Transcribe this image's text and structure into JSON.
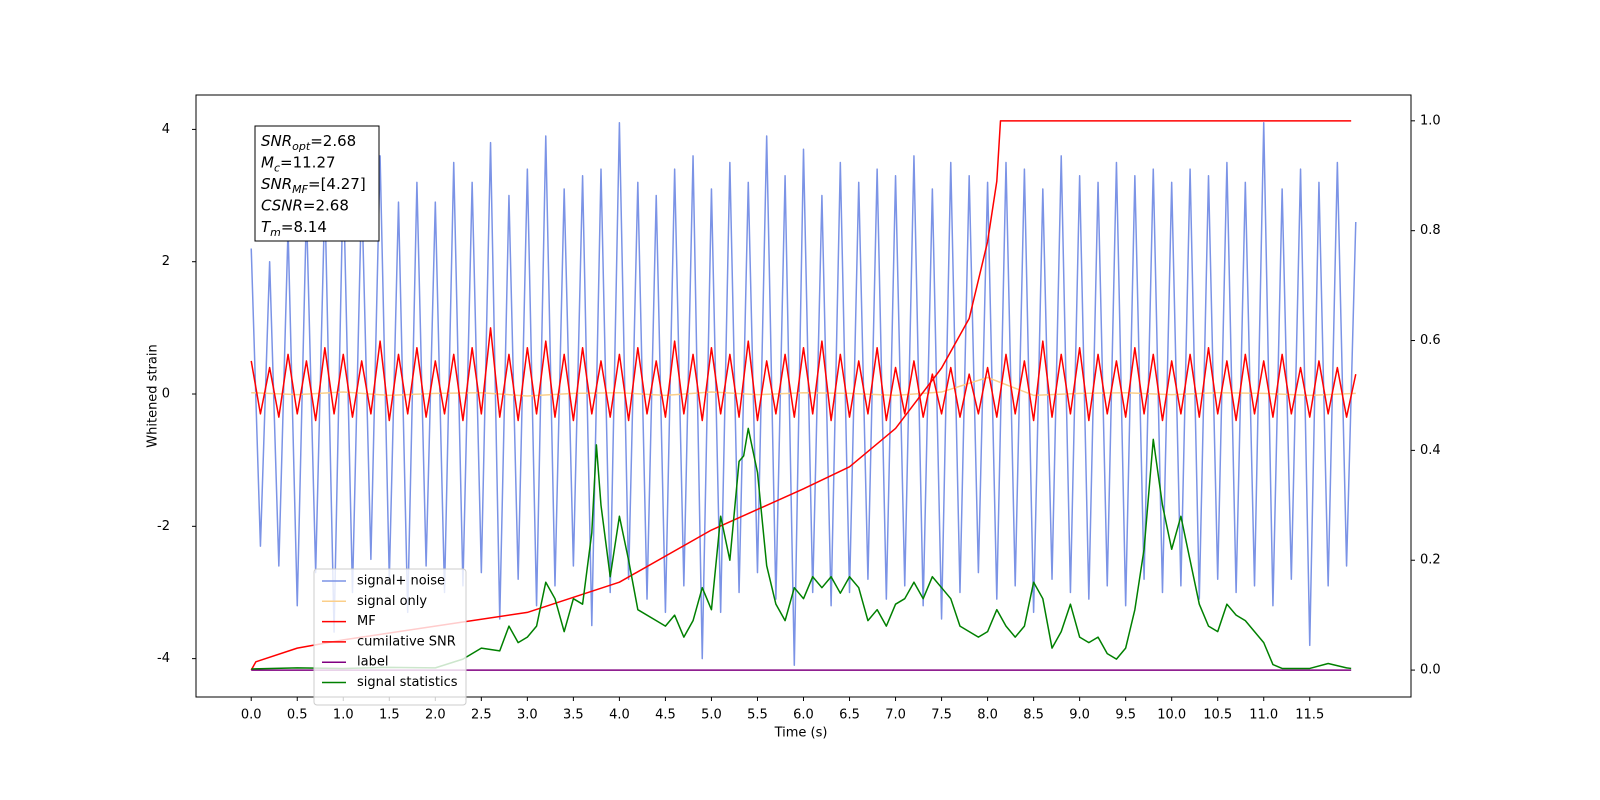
{
  "chart_data": {
    "type": "line",
    "xlabel": "Time (s)",
    "ylabel": "Whitened strain",
    "xlim": [
      -0.6,
      12.6
    ],
    "ylim": [
      -4.58,
      4.52
    ],
    "y2lim": [
      -0.049,
      1.047
    ],
    "xticks": [
      {
        "value": 0,
        "label": "0.0"
      },
      0.5,
      {
        "value": 1,
        "label": "1.0"
      },
      1.5,
      {
        "value": 2,
        "label": "2.0"
      },
      2.5,
      {
        "value": 3,
        "label": "3.0"
      },
      3.5,
      {
        "value": 4,
        "label": "4.0"
      },
      4.5,
      {
        "value": 5,
        "label": "5.0"
      },
      5.5,
      {
        "value": 6,
        "label": "6.0"
      },
      6.5,
      {
        "value": 7,
        "label": "7.0"
      },
      7.5,
      {
        "value": 8,
        "label": "8.0"
      },
      8.5,
      {
        "value": 9,
        "label": "9.0"
      },
      9.5,
      {
        "value": 10,
        "label": "10.0"
      },
      10.5,
      {
        "value": 11,
        "label": "11.0"
      },
      11.5
    ],
    "yticks": [
      -4,
      -2,
      0,
      2,
      4
    ],
    "y2ticks": [
      {
        "value": 0,
        "label": "0.0"
      },
      0.2,
      0.4,
      0.6,
      0.8,
      {
        "value": 1,
        "label": "1.0"
      }
    ],
    "legend_loc": "lower left",
    "annotation": [
      {
        "name": "SNR",
        "sub": "opt",
        "text": "=2.68"
      },
      {
        "name": "M",
        "sub": "c",
        "text": "=11.27"
      },
      {
        "name": "SNR",
        "sub": "MF",
        "text": "=[4.27]"
      },
      {
        "name": "CSNR",
        "text": "=2.68"
      },
      {
        "name": "T",
        "sub": "m",
        "text": "=8.14"
      }
    ],
    "x": [
      0,
      0.1,
      0.2,
      0.3,
      0.4,
      0.5,
      0.6,
      0.7,
      0.8,
      0.9,
      1.0,
      1.1,
      1.2,
      1.3,
      1.4,
      1.5,
      1.6,
      1.7,
      1.8,
      1.9,
      2.0,
      2.1,
      2.2,
      2.3,
      2.4,
      2.5,
      2.6,
      2.7,
      2.8,
      2.9,
      3.0,
      3.1,
      3.2,
      3.3,
      3.4,
      3.5,
      3.6,
      3.7,
      3.8,
      3.9,
      4.0,
      4.1,
      4.2,
      4.3,
      4.4,
      4.5,
      4.6,
      4.7,
      4.8,
      4.9,
      5.0,
      5.1,
      5.2,
      5.3,
      5.4,
      5.5,
      5.6,
      5.7,
      5.8,
      5.9,
      6.0,
      6.1,
      6.2,
      6.3,
      6.4,
      6.5,
      6.6,
      6.7,
      6.8,
      6.9,
      7.0,
      7.1,
      7.2,
      7.3,
      7.4,
      7.5,
      7.6,
      7.7,
      7.8,
      7.9,
      8.0,
      8.1,
      8.2,
      8.3,
      8.4,
      8.5,
      8.6,
      8.7,
      8.8,
      8.9,
      9.0,
      9.1,
      9.2,
      9.3,
      9.4,
      9.5,
      9.6,
      9.7,
      9.8,
      9.9,
      10.0,
      10.1,
      10.2,
      10.3,
      10.4,
      10.5,
      10.6,
      10.7,
      10.8,
      10.9,
      11.0,
      11.1,
      11.2,
      11.3,
      11.4,
      11.5,
      11.6,
      11.7,
      11.8,
      11.9,
      12.0
    ],
    "series": [
      {
        "name": "signal+ noise",
        "color": "#7b93e6",
        "values": [
          2.2,
          -2.3,
          2.0,
          -2.6,
          2.5,
          -3.2,
          2.8,
          -2.7,
          3.0,
          -3.6,
          3.3,
          -3.0,
          3.1,
          -2.5,
          3.6,
          -2.8,
          2.9,
          -3.3,
          3.2,
          -2.6,
          2.9,
          -3.0,
          3.5,
          -2.9,
          3.2,
          -2.7,
          3.8,
          -3.4,
          3.0,
          -2.8,
          3.4,
          -3.2,
          3.9,
          -2.9,
          3.1,
          -2.6,
          3.3,
          -3.5,
          3.4,
          -3.0,
          4.1,
          -2.8,
          3.2,
          -3.1,
          3.0,
          -3.3,
          3.4,
          -2.9,
          3.6,
          -4.0,
          3.1,
          -3.3,
          3.5,
          -3.0,
          3.2,
          -2.7,
          3.9,
          -3.1,
          3.3,
          -4.1,
          3.7,
          -3.0,
          3.0,
          -3.2,
          3.5,
          -3.0,
          3.2,
          -2.8,
          3.4,
          -3.1,
          3.3,
          -2.9,
          3.6,
          -3.2,
          3.1,
          -3.4,
          3.5,
          -3.0,
          3.3,
          -2.7,
          3.2,
          -3.1,
          3.5,
          -2.9,
          3.4,
          -3.3,
          3.1,
          -2.8,
          3.6,
          -3.0,
          3.3,
          -3.1,
          3.2,
          -2.9,
          3.5,
          -3.2,
          3.3,
          -2.8,
          3.4,
          -3.0,
          3.2,
          -2.9,
          3.4,
          -3.1,
          3.3,
          -2.8,
          3.5,
          -3.0,
          3.2,
          -2.9,
          4.1,
          -3.2,
          3.1,
          -2.8,
          3.4,
          -3.8,
          3.2,
          -2.9,
          3.5,
          -2.6,
          2.6
        ]
      },
      {
        "name": "signal only",
        "color": "#fbcf8a",
        "x": [
          0,
          0.5,
          1.0,
          1.5,
          2.0,
          2.5,
          3.0,
          3.5,
          4.0,
          4.5,
          5.0,
          5.5,
          6.0,
          6.5,
          7.0,
          7.5,
          8.0,
          8.5,
          9.0,
          9.5,
          10.0,
          10.5,
          11.0,
          11.5,
          12.0
        ],
        "values": [
          0.02,
          -0.01,
          0.03,
          -0.02,
          0.01,
          0.02,
          -0.03,
          0.01,
          0.02,
          -0.02,
          0.03,
          -0.01,
          0.02,
          0.01,
          -0.02,
          0.03,
          0.25,
          -0.02,
          0.01,
          0.02,
          -0.01,
          0.02,
          0.01,
          -0.02,
          0.01
        ]
      },
      {
        "name": "MF",
        "color": "#ff0000",
        "values": [
          0.5,
          -0.3,
          0.4,
          -0.35,
          0.6,
          -0.3,
          0.5,
          -0.4,
          0.7,
          -0.3,
          0.6,
          -0.35,
          0.5,
          -0.3,
          0.8,
          -0.4,
          0.6,
          -0.3,
          0.7,
          -0.35,
          0.5,
          -0.3,
          0.6,
          -0.4,
          0.7,
          -0.3,
          1.0,
          -0.35,
          0.6,
          -0.4,
          0.7,
          -0.3,
          0.8,
          -0.35,
          0.6,
          -0.4,
          0.7,
          -0.3,
          0.5,
          -0.35,
          0.6,
          -0.4,
          0.7,
          -0.3,
          0.5,
          -0.35,
          0.8,
          -0.3,
          0.6,
          -0.4,
          0.7,
          -0.3,
          0.6,
          -0.35,
          0.8,
          -0.4,
          0.5,
          -0.3,
          0.6,
          -0.35,
          0.7,
          -0.3,
          0.8,
          -0.4,
          0.6,
          -0.35,
          0.5,
          -0.3,
          0.7,
          -0.4,
          0.4,
          -0.3,
          0.5,
          -0.35,
          0.3,
          -0.3,
          0.4,
          -0.35,
          0.3,
          -0.3,
          0.4,
          -0.35,
          0.6,
          -0.3,
          0.5,
          -0.4,
          0.8,
          -0.35,
          0.6,
          -0.3,
          0.7,
          -0.4,
          0.6,
          -0.3,
          0.5,
          -0.35,
          0.7,
          -0.3,
          0.6,
          -0.4,
          0.5,
          -0.3,
          0.6,
          -0.35,
          0.7,
          -0.3,
          0.5,
          -0.4,
          0.6,
          -0.3,
          0.5,
          -0.35,
          0.6,
          -0.3,
          0.4,
          -0.35,
          0.5,
          -0.3,
          0.4,
          -0.35,
          0.3
        ]
      },
      {
        "name": "cumilative SNR",
        "color": "#ff0000",
        "axis": "y2",
        "x": [
          0,
          0.05,
          0.5,
          1.0,
          2.0,
          3.0,
          4.0,
          5.0,
          6.0,
          6.5,
          7.0,
          7.5,
          7.8,
          8.0,
          8.1,
          8.14,
          11.95
        ],
        "values": [
          0,
          0.015,
          0.04,
          0.055,
          0.08,
          0.105,
          0.16,
          0.255,
          0.33,
          0.37,
          0.44,
          0.55,
          0.64,
          0.78,
          0.89,
          1.0,
          1.0
        ]
      },
      {
        "name": "label",
        "color": "#800080",
        "axis": "y2",
        "x": [
          0,
          11.95
        ],
        "values": [
          0,
          0
        ]
      },
      {
        "name": "signal statistics",
        "color": "#008000",
        "axis": "y2",
        "x": [
          0,
          0.5,
          1.0,
          1.5,
          2.0,
          2.3,
          2.5,
          2.7,
          2.8,
          2.9,
          3.0,
          3.1,
          3.2,
          3.3,
          3.4,
          3.5,
          3.6,
          3.7,
          3.75,
          3.8,
          3.9,
          4.0,
          4.1,
          4.2,
          4.4,
          4.5,
          4.6,
          4.7,
          4.8,
          4.9,
          5.0,
          5.1,
          5.2,
          5.3,
          5.35,
          5.4,
          5.5,
          5.6,
          5.7,
          5.8,
          5.9,
          6.0,
          6.1,
          6.2,
          6.3,
          6.4,
          6.5,
          6.6,
          6.7,
          6.8,
          6.9,
          7.0,
          7.1,
          7.2,
          7.3,
          7.4,
          7.5,
          7.6,
          7.7,
          7.8,
          7.9,
          8.0,
          8.1,
          8.2,
          8.3,
          8.4,
          8.5,
          8.6,
          8.7,
          8.8,
          8.9,
          9.0,
          9.1,
          9.2,
          9.3,
          9.4,
          9.5,
          9.6,
          9.7,
          9.8,
          9.9,
          10.0,
          10.1,
          10.2,
          10.3,
          10.4,
          10.5,
          10.6,
          10.7,
          10.8,
          10.9,
          11.0,
          11.1,
          11.2,
          11.5,
          11.7,
          11.9,
          11.95
        ],
        "values": [
          0.002,
          0.004,
          0.003,
          0.005,
          0.004,
          0.02,
          0.04,
          0.035,
          0.08,
          0.05,
          0.06,
          0.08,
          0.16,
          0.13,
          0.07,
          0.13,
          0.12,
          0.25,
          0.41,
          0.3,
          0.17,
          0.28,
          0.2,
          0.11,
          0.09,
          0.08,
          0.1,
          0.06,
          0.09,
          0.15,
          0.11,
          0.28,
          0.2,
          0.38,
          0.39,
          0.44,
          0.36,
          0.19,
          0.12,
          0.09,
          0.15,
          0.13,
          0.17,
          0.15,
          0.17,
          0.14,
          0.17,
          0.15,
          0.09,
          0.11,
          0.08,
          0.12,
          0.13,
          0.16,
          0.13,
          0.17,
          0.15,
          0.13,
          0.08,
          0.07,
          0.06,
          0.07,
          0.11,
          0.08,
          0.06,
          0.08,
          0.16,
          0.13,
          0.04,
          0.07,
          0.12,
          0.06,
          0.05,
          0.06,
          0.03,
          0.02,
          0.04,
          0.11,
          0.22,
          0.42,
          0.3,
          0.22,
          0.28,
          0.2,
          0.12,
          0.08,
          0.07,
          0.12,
          0.1,
          0.09,
          0.07,
          0.05,
          0.01,
          0.003,
          0.003,
          0.012,
          0.004,
          0.003
        ]
      }
    ]
  }
}
